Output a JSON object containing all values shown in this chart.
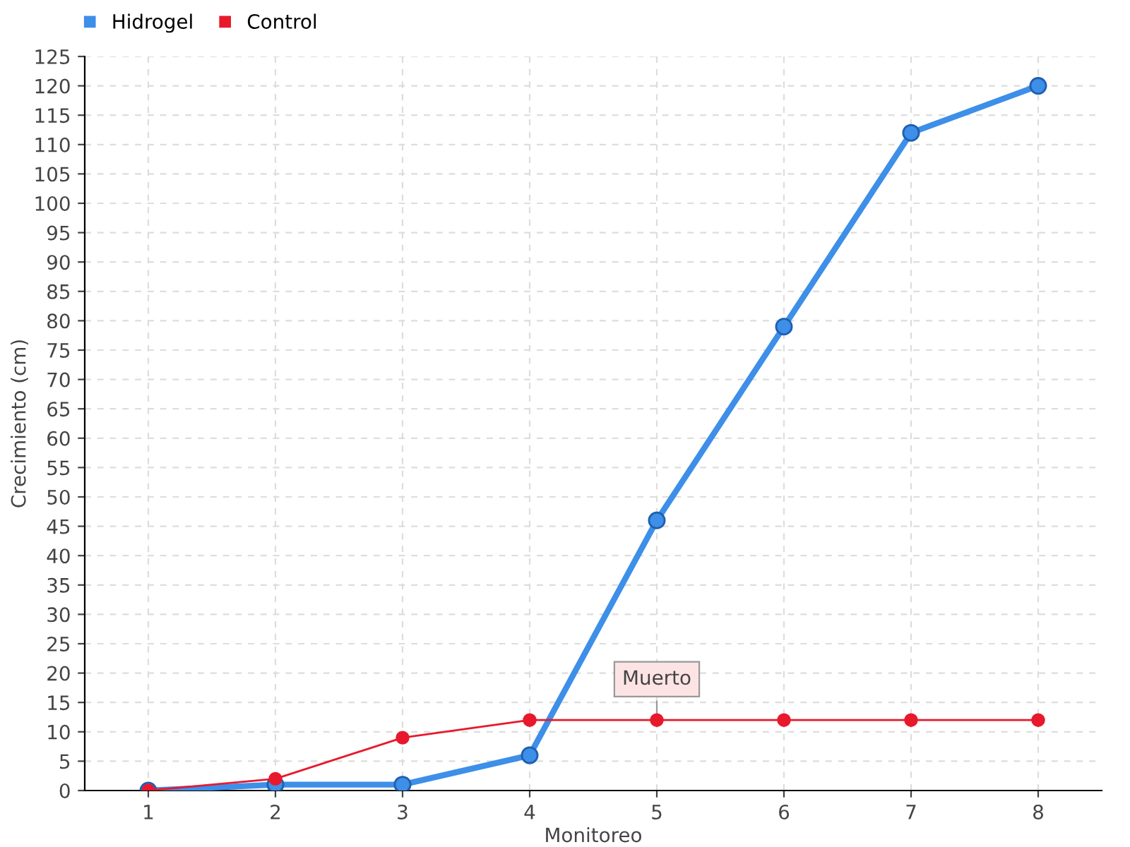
{
  "chart_data": {
    "type": "line",
    "xlabel": "Monitoreo",
    "ylabel": "Crecimiento (cm)",
    "x": [
      1,
      2,
      3,
      4,
      5,
      6,
      7,
      8
    ],
    "series": [
      {
        "name": "Hidrogel",
        "color": "#3d8fe8",
        "values": [
          0,
          1,
          1,
          6,
          46,
          79,
          112,
          120
        ]
      },
      {
        "name": "Control",
        "color": "#e8192c",
        "values": [
          0,
          2,
          9,
          12,
          12,
          12,
          12,
          12
        ]
      }
    ],
    "xlim": [
      0.5,
      8.5
    ],
    "xticks": [
      1,
      2,
      3,
      4,
      5,
      6,
      7,
      8
    ],
    "ylim": [
      0,
      125
    ],
    "yticks": [
      0,
      5,
      10,
      15,
      20,
      25,
      30,
      35,
      40,
      45,
      50,
      55,
      60,
      65,
      70,
      75,
      80,
      85,
      90,
      95,
      100,
      105,
      110,
      115,
      120,
      125
    ],
    "grid": true,
    "legend": "top left",
    "marker": "circle",
    "annotations": [
      {
        "text": "Muerto",
        "x": 5,
        "y": 12
      }
    ]
  }
}
